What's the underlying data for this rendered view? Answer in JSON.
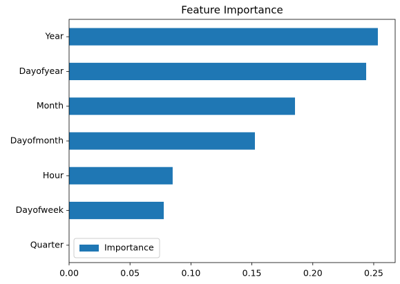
{
  "chart_data": {
    "type": "barh",
    "title": "Feature Importance",
    "categories": [
      "Year",
      "Dayofyear",
      "Month",
      "Dayofmonth",
      "Hour",
      "Dayofweek",
      "Quarter"
    ],
    "series": [
      {
        "name": "Importance",
        "color": "#1f77b4",
        "values": [
          0.2534,
          0.2438,
          0.1854,
          0.1525,
          0.085,
          0.0777,
          0
        ]
      }
    ],
    "xlim": [
      0,
      0.2676
    ],
    "xticks": [
      {
        "value": 0,
        "label": "0.00"
      },
      0.05,
      {
        "value": 0.1,
        "label": "0.10"
      },
      0.15,
      {
        "value": 0.2,
        "label": "0.20"
      },
      0.25
    ],
    "grid": false,
    "legend": "lower left"
  }
}
